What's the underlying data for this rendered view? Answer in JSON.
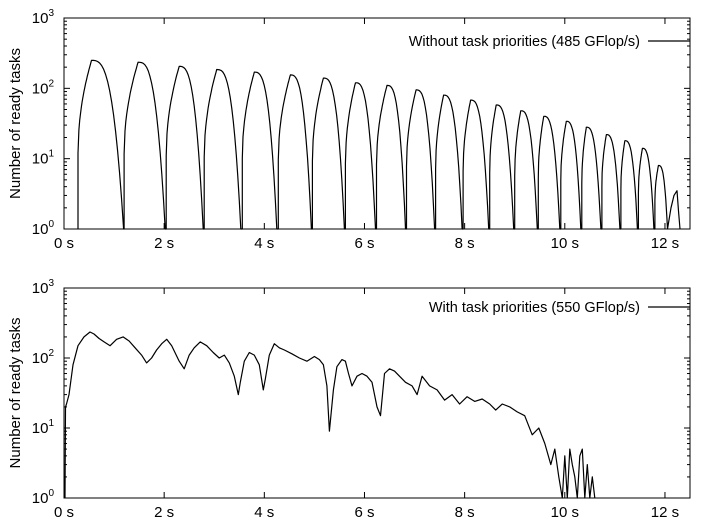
{
  "chart_data": [
    {
      "type": "line",
      "title": "",
      "xlabel": "",
      "ylabel": "Number of ready tasks",
      "xlim": [
        0,
        12.5
      ],
      "ylim": [
        1,
        1000
      ],
      "yscale": "log",
      "x_ticks": [
        "0 s",
        "2 s",
        "4 s",
        "6 s",
        "8 s",
        "10 s",
        "12 s"
      ],
      "x_tick_values": [
        0,
        2,
        4,
        6,
        8,
        10,
        12
      ],
      "y_ticks": [
        {
          "base": "10",
          "exp": "0"
        },
        {
          "base": "10",
          "exp": "1"
        },
        {
          "base": "10",
          "exp": "2"
        },
        {
          "base": "10",
          "exp": "3"
        }
      ],
      "y_tick_values": [
        1,
        10,
        100,
        1000
      ],
      "grid": false,
      "legend_position": "top-right",
      "series": [
        {
          "name": "Without task priorities (485 GFlop/s)",
          "color": "#000000",
          "peaks": [
            {
              "start": 0.28,
              "end": 1.19,
              "peak_t": 0.55,
              "peak": 250
            },
            {
              "start": 1.2,
              "end": 2.02,
              "peak_t": 1.48,
              "peak": 235
            },
            {
              "start": 2.04,
              "end": 2.78,
              "peak_t": 2.3,
              "peak": 205
            },
            {
              "start": 2.8,
              "end": 3.53,
              "peak_t": 3.05,
              "peak": 185
            },
            {
              "start": 3.56,
              "end": 4.25,
              "peak_t": 3.8,
              "peak": 170
            },
            {
              "start": 4.28,
              "end": 4.94,
              "peak_t": 4.52,
              "peak": 155
            },
            {
              "start": 4.96,
              "end": 5.6,
              "peak_t": 5.18,
              "peak": 140
            },
            {
              "start": 5.62,
              "end": 6.22,
              "peak_t": 5.82,
              "peak": 120
            },
            {
              "start": 6.24,
              "end": 6.82,
              "peak_t": 6.45,
              "peak": 110
            },
            {
              "start": 6.84,
              "end": 7.4,
              "peak_t": 7.03,
              "peak": 95
            },
            {
              "start": 7.42,
              "end": 7.95,
              "peak_t": 7.58,
              "peak": 80
            },
            {
              "start": 7.97,
              "end": 8.48,
              "peak_t": 8.12,
              "peak": 68
            },
            {
              "start": 8.5,
              "end": 8.98,
              "peak_t": 8.63,
              "peak": 58
            },
            {
              "start": 9.0,
              "end": 9.45,
              "peak_t": 9.12,
              "peak": 48
            },
            {
              "start": 9.47,
              "end": 9.9,
              "peak_t": 9.58,
              "peak": 40
            },
            {
              "start": 9.92,
              "end": 10.32,
              "peak_t": 10.03,
              "peak": 34
            },
            {
              "start": 10.34,
              "end": 10.72,
              "peak_t": 10.43,
              "peak": 28
            },
            {
              "start": 10.74,
              "end": 11.1,
              "peak_t": 10.83,
              "peak": 22
            },
            {
              "start": 11.12,
              "end": 11.45,
              "peak_t": 11.2,
              "peak": 18
            },
            {
              "start": 11.47,
              "end": 11.78,
              "peak_t": 11.55,
              "peak": 14
            },
            {
              "start": 11.8,
              "end": 12.05,
              "peak_t": 11.87,
              "peak": 8
            }
          ],
          "tail": {
            "x": [
              12.05,
              12.12,
              12.18,
              12.24,
              12.27,
              12.3
            ],
            "y": [
              1,
              2,
              3,
              3.5,
              1.8,
              1
            ]
          }
        }
      ]
    },
    {
      "type": "line",
      "title": "",
      "xlabel": "",
      "ylabel": "Number of ready tasks",
      "xlim": [
        0,
        12.5
      ],
      "ylim": [
        1,
        1000
      ],
      "yscale": "log",
      "x_ticks": [
        "0 s",
        "2 s",
        "4 s",
        "6 s",
        "8 s",
        "10 s",
        "12 s"
      ],
      "x_tick_values": [
        0,
        2,
        4,
        6,
        8,
        10,
        12
      ],
      "y_ticks": [
        {
          "base": "10",
          "exp": "0"
        },
        {
          "base": "10",
          "exp": "1"
        },
        {
          "base": "10",
          "exp": "2"
        },
        {
          "base": "10",
          "exp": "3"
        }
      ],
      "y_tick_values": [
        1,
        10,
        100,
        1000
      ],
      "grid": false,
      "legend_position": "top-right",
      "series": [
        {
          "name": "With task priorities (550 GFlop/s)",
          "color": "#000000",
          "x": [
            0.02,
            0.03,
            0.05,
            0.1,
            0.18,
            0.28,
            0.4,
            0.52,
            0.6,
            0.7,
            0.8,
            0.92,
            1.05,
            1.18,
            1.3,
            1.42,
            1.55,
            1.65,
            1.75,
            1.85,
            1.95,
            2.05,
            2.15,
            2.3,
            2.4,
            2.5,
            2.6,
            2.72,
            2.85,
            2.98,
            3.1,
            3.2,
            3.3,
            3.4,
            3.48,
            3.52,
            3.6,
            3.7,
            3.8,
            3.9,
            3.98,
            4.02,
            4.1,
            4.2,
            4.3,
            4.4,
            4.55,
            4.7,
            4.85,
            5.0,
            5.1,
            5.18,
            5.25,
            5.3,
            5.38,
            5.45,
            5.55,
            5.62,
            5.68,
            5.75,
            5.85,
            5.95,
            6.05,
            6.15,
            6.25,
            6.32,
            6.4,
            6.5,
            6.6,
            6.7,
            6.82,
            6.95,
            7.05,
            7.15,
            7.3,
            7.45,
            7.6,
            7.75,
            7.9,
            8.05,
            8.2,
            8.35,
            8.5,
            8.62,
            8.75,
            8.9,
            9.05,
            9.2,
            9.35,
            9.48,
            9.6,
            9.72,
            9.8,
            9.88,
            9.95,
            10.0,
            10.05,
            10.1,
            10.15,
            10.2,
            10.25,
            10.3,
            10.35,
            10.4,
            10.45,
            10.5,
            10.55,
            10.6
          ],
          "y": [
            1,
            20,
            22,
            30,
            80,
            150,
            200,
            235,
            220,
            190,
            170,
            150,
            185,
            200,
            175,
            140,
            110,
            85,
            100,
            130,
            160,
            185,
            150,
            90,
            70,
            110,
            140,
            170,
            150,
            120,
            100,
            110,
            85,
            55,
            30,
            45,
            90,
            120,
            110,
            80,
            35,
            50,
            110,
            160,
            140,
            130,
            115,
            100,
            90,
            105,
            95,
            80,
            40,
            9,
            35,
            75,
            95,
            90,
            60,
            40,
            55,
            60,
            55,
            45,
            20,
            15,
            60,
            70,
            65,
            55,
            45,
            40,
            30,
            55,
            40,
            35,
            25,
            30,
            22,
            28,
            24,
            26,
            22,
            18,
            22,
            20,
            17,
            15,
            8,
            10,
            6,
            3,
            5,
            2,
            1,
            4,
            1,
            5,
            3,
            2,
            1,
            4,
            5,
            1,
            3,
            1,
            2,
            1
          ]
        }
      ]
    }
  ]
}
